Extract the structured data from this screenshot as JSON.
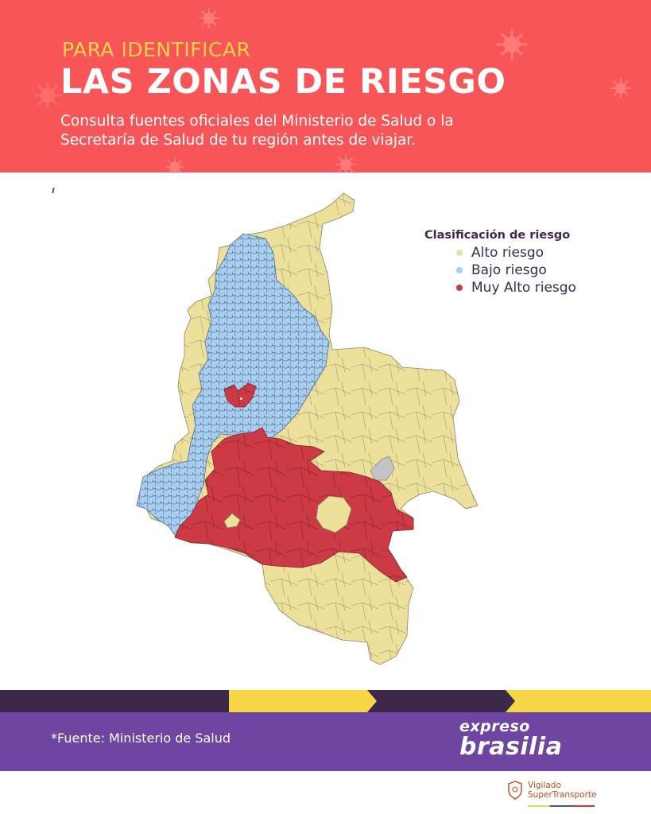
{
  "header": {
    "kicker": "PARA IDENTIFICAR",
    "title": "LAS ZONAS DE RIESGO",
    "subtitle_line1": "Consulta fuentes oficiales del Ministerio de Salud o la",
    "subtitle_line2": "Secretaría de Salud de tu región antes de viajar.",
    "background_color": "#f75557",
    "decorations": [
      "virus-icon"
    ]
  },
  "map": {
    "region": "Colombia",
    "unit": "municipios",
    "legend": {
      "title": "Clasificación de riesgo",
      "items": [
        {
          "label": "Alto riesgo",
          "color": "#ede09a"
        },
        {
          "label": "Bajo riesgo",
          "color": "#a9cff0"
        },
        {
          "label": "Muy Alto riesgo",
          "color": "#cc3b45"
        }
      ]
    },
    "no_data_color": "#c4c4c4"
  },
  "footer": {
    "source": "*Fuente: Ministerio de Salud",
    "brand_top": "expreso",
    "brand_bottom": "brasilia",
    "vigilado_line1": "Vigilado",
    "vigilado_line2": "SuperTransporte",
    "colors": {
      "stripe": "#3c2848",
      "arrow": "#f6d547",
      "band": "#6e45a1"
    }
  }
}
